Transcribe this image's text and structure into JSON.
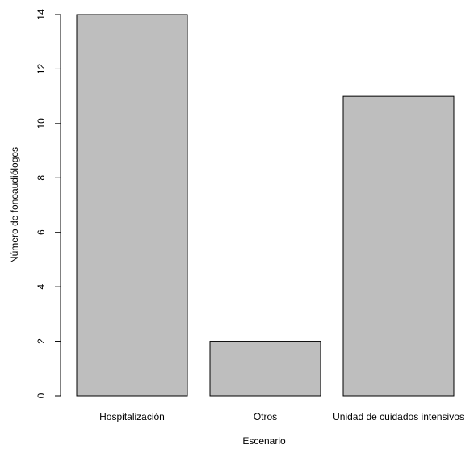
{
  "chart_data": {
    "type": "bar",
    "title": "",
    "xlabel": "Escenario",
    "ylabel": "Número de fonoaudiólogos",
    "categories": [
      "Hospitalización",
      "Otros",
      "Unidad de cuidados intensivos"
    ],
    "values": [
      14,
      2,
      11
    ],
    "ylim": [
      0,
      14
    ],
    "yticks": [
      "0",
      "2",
      "4",
      "6",
      "8",
      "10",
      "12",
      "14"
    ],
    "grid": false,
    "legend": "none",
    "colors": {
      "bar_fill": "#bebebe",
      "bar_stroke": "#000000",
      "axis": "#000000"
    }
  }
}
